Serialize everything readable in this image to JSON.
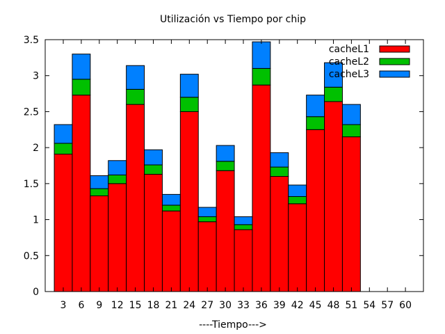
{
  "chart_data": {
    "type": "bar",
    "stacked": true,
    "title": "Utilización vs Tiempo por chip",
    "xlabel": "----Tiempo--->",
    "ylabel": "",
    "ylim": [
      0,
      3.5
    ],
    "yticks": [
      "0",
      "0.5",
      "1",
      "1.5",
      "2",
      "2.5",
      "3",
      "3.5"
    ],
    "categories": [
      "3",
      "6",
      "9",
      "12",
      "15",
      "18",
      "21",
      "24",
      "27",
      "30",
      "33",
      "36",
      "39",
      "42",
      "45",
      "48",
      "51",
      "54",
      "57",
      "60"
    ],
    "legend_position": "top-right",
    "grid": false,
    "series": [
      {
        "name": "cacheL1",
        "color": "#ff0000",
        "values": [
          1.91,
          2.73,
          1.33,
          1.5,
          2.6,
          1.63,
          1.12,
          2.5,
          0.97,
          1.68,
          0.86,
          2.87,
          1.6,
          1.22,
          2.25,
          2.64,
          2.15,
          null,
          null,
          null
        ]
      },
      {
        "name": "cacheL2",
        "color": "#00c000",
        "values": [
          0.15,
          0.22,
          0.1,
          0.12,
          0.21,
          0.13,
          0.08,
          0.2,
          0.07,
          0.13,
          0.07,
          0.23,
          0.13,
          0.1,
          0.18,
          0.2,
          0.17,
          null,
          null,
          null
        ]
      },
      {
        "name": "cacheL3",
        "color": "#0080ff",
        "values": [
          0.26,
          0.35,
          0.18,
          0.2,
          0.33,
          0.21,
          0.15,
          0.32,
          0.13,
          0.22,
          0.11,
          0.37,
          0.2,
          0.16,
          0.3,
          0.34,
          0.28,
          null,
          null,
          null
        ]
      }
    ]
  }
}
